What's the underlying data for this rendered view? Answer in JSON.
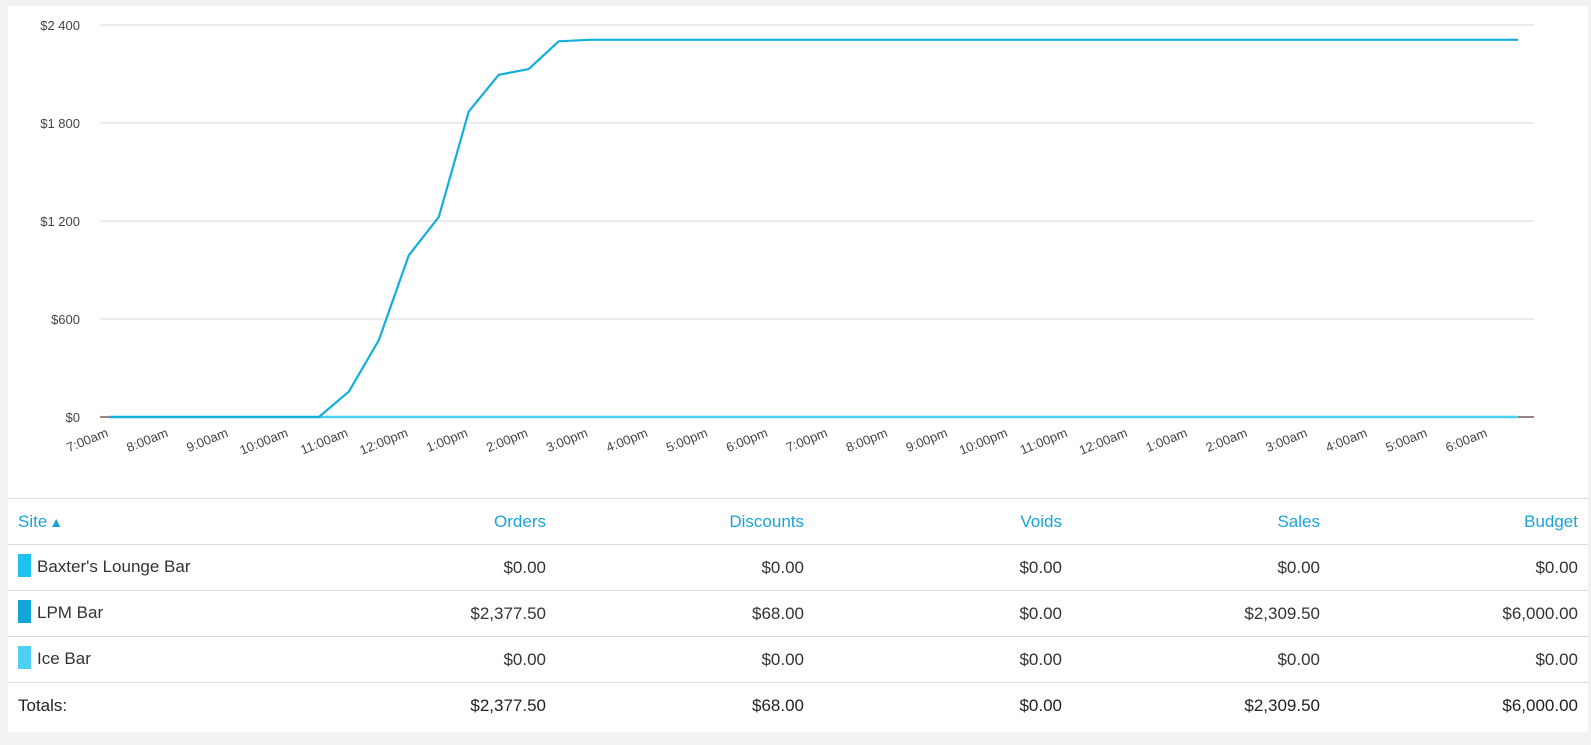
{
  "chart_data": {
    "type": "line",
    "x": [
      "7:00am",
      "7:30am",
      "8:00am",
      "8:30am",
      "9:00am",
      "9:30am",
      "10:00am",
      "10:30am",
      "11:00am",
      "11:30am",
      "12:00pm",
      "12:30pm",
      "1:00pm",
      "1:30pm",
      "2:00pm",
      "2:30pm",
      "3:00pm",
      "3:30pm",
      "4:00pm",
      "4:30pm",
      "5:00pm",
      "5:30pm",
      "6:00pm",
      "6:30pm",
      "7:00pm",
      "7:30pm",
      "8:00pm",
      "8:30pm",
      "9:00pm",
      "9:30pm",
      "10:00pm",
      "10:30pm",
      "11:00pm",
      "11:30pm",
      "12:00am",
      "12:30am",
      "1:00am",
      "1:30am",
      "2:00am",
      "2:30am",
      "3:00am",
      "3:30am",
      "4:00am",
      "4:30am",
      "5:00am",
      "5:30am",
      "6:00am",
      "6:30am"
    ],
    "x_tick_labels": [
      "7:00am",
      "8:00am",
      "9:00am",
      "10:00am",
      "11:00am",
      "12:00pm",
      "1:00pm",
      "2:00pm",
      "3:00pm",
      "4:00pm",
      "5:00pm",
      "6:00pm",
      "7:00pm",
      "8:00pm",
      "9:00pm",
      "10:00pm",
      "11:00pm",
      "12:00am",
      "1:00am",
      "2:00am",
      "3:00am",
      "4:00am",
      "5:00am",
      "6:00am"
    ],
    "y_tick_labels": [
      "$0",
      "$600",
      "$1 200",
      "$1 800",
      "$2 400"
    ],
    "y_ticks": [
      0,
      600,
      1200,
      1800,
      2400
    ],
    "ylim": [
      0,
      2400
    ],
    "grid": true,
    "series": [
      {
        "name": "LPM Bar",
        "color": "#12aedc",
        "values": [
          0,
          0,
          0,
          0,
          0,
          0,
          0,
          0,
          155,
          470,
          990,
          1225,
          1870,
          2095,
          2130,
          2300,
          2309.5,
          2309.5,
          2309.5,
          2309.5,
          2309.5,
          2309.5,
          2309.5,
          2309.5,
          2309.5,
          2309.5,
          2309.5,
          2309.5,
          2309.5,
          2309.5,
          2309.5,
          2309.5,
          2309.5,
          2309.5,
          2309.5,
          2309.5,
          2309.5,
          2309.5,
          2309.5,
          2309.5,
          2309.5,
          2309.5,
          2309.5,
          2309.5,
          2309.5,
          2309.5,
          2309.5,
          2309.5
        ]
      },
      {
        "name": "Baxter's Lounge Bar",
        "color": "#1ec2ee",
        "values": [
          0,
          0,
          0,
          0,
          0,
          0,
          0,
          0,
          0,
          0,
          0,
          0,
          0,
          0,
          0,
          0,
          0,
          0,
          0,
          0,
          0,
          0,
          0,
          0,
          0,
          0,
          0,
          0,
          0,
          0,
          0,
          0,
          0,
          0,
          0,
          0,
          0,
          0,
          0,
          0,
          0,
          0,
          0,
          0,
          0,
          0,
          0,
          0
        ]
      },
      {
        "name": "Ice Bar",
        "color": "#4dd0f2",
        "values": [
          0,
          0,
          0,
          0,
          0,
          0,
          0,
          0,
          0,
          0,
          0,
          0,
          0,
          0,
          0,
          0,
          0,
          0,
          0,
          0,
          0,
          0,
          0,
          0,
          0,
          0,
          0,
          0,
          0,
          0,
          0,
          0,
          0,
          0,
          0,
          0,
          0,
          0,
          0,
          0,
          0,
          0,
          0,
          0,
          0,
          0,
          0,
          0
        ]
      }
    ]
  },
  "table": {
    "headers": {
      "site": "Site",
      "orders": "Orders",
      "discounts": "Discounts",
      "voids": "Voids",
      "sales": "Sales",
      "budget": "Budget"
    },
    "sort_indicator": "▲",
    "rows": [
      {
        "site": "Baxter's Lounge Bar",
        "color": "#1ec2ee",
        "orders": "$0.00",
        "discounts": "$0.00",
        "voids": "$0.00",
        "sales": "$0.00",
        "budget": "$0.00"
      },
      {
        "site": "LPM Bar",
        "color": "#12a6d6",
        "orders": "$2,377.50",
        "discounts": "$68.00",
        "voids": "$0.00",
        "sales": "$2,309.50",
        "budget": "$6,000.00"
      },
      {
        "site": "Ice Bar",
        "color": "#4dd0f2",
        "orders": "$0.00",
        "discounts": "$0.00",
        "voids": "$0.00",
        "sales": "$0.00",
        "budget": "$0.00"
      }
    ],
    "totals": {
      "label": "Totals:",
      "orders": "$2,377.50",
      "discounts": "$68.00",
      "voids": "$0.00",
      "sales": "$2,309.50",
      "budget": "$6,000.00"
    }
  }
}
